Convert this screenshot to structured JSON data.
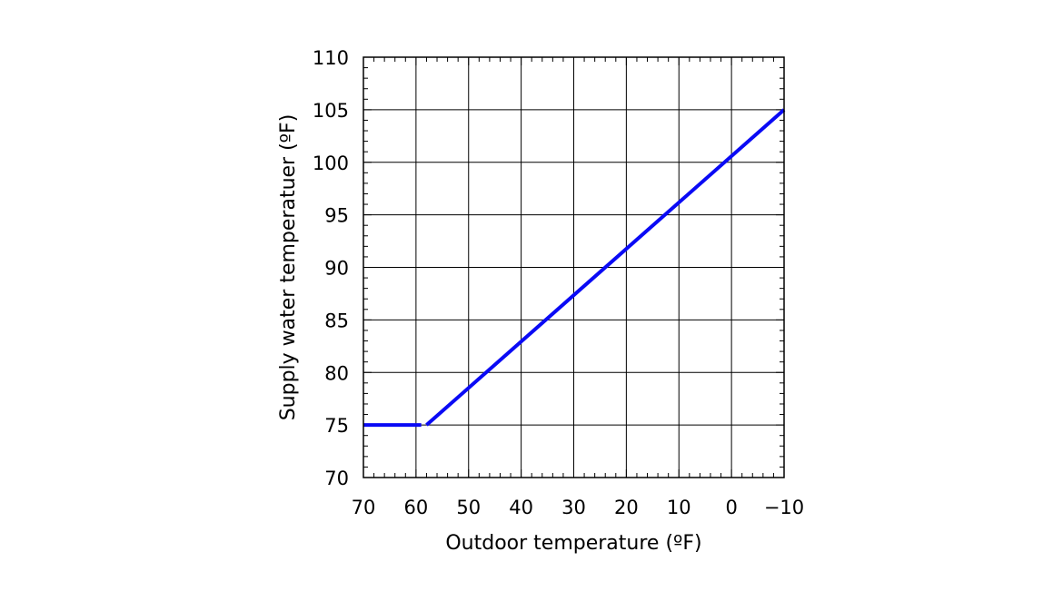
{
  "chart_data": {
    "type": "line",
    "title": "",
    "xlabel": "Outdoor temperature (ºF)",
    "ylabel": "Supply water temperatuer (ºF)",
    "xlim": [
      70,
      -10
    ],
    "ylim": [
      70,
      110
    ],
    "x_reversed": true,
    "x_ticks": [
      70,
      60,
      50,
      40,
      30,
      20,
      10,
      0,
      -10
    ],
    "x_tick_labels": [
      "70",
      "60",
      "50",
      "40",
      "30",
      "20",
      "10",
      "0",
      "−10"
    ],
    "y_ticks": [
      70,
      75,
      80,
      85,
      90,
      95,
      100,
      105,
      110
    ],
    "y_tick_labels": [
      "70",
      "75",
      "80",
      "85",
      "90",
      "95",
      "100",
      "105",
      "110"
    ],
    "grid": true,
    "series": [
      {
        "color": "#0a0af5",
        "segments": [
          [
            [
              70,
              75
            ],
            [
              59,
              75
            ]
          ],
          [
            [
              58,
              75
            ],
            [
              -10,
              105
            ]
          ]
        ]
      }
    ]
  }
}
